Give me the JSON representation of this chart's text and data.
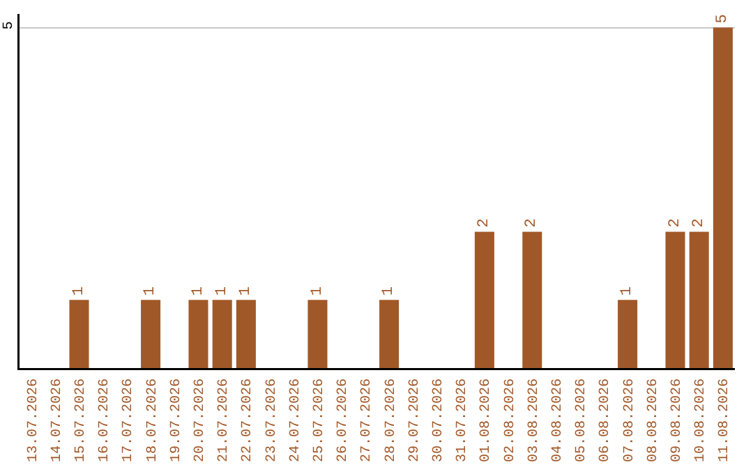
{
  "chart_data": {
    "type": "bar",
    "categories": [
      "13.07.2026",
      "14.07.2026",
      "15.07.2026",
      "16.07.2026",
      "17.07.2026",
      "18.07.2026",
      "19.07.2026",
      "20.07.2026",
      "21.07.2026",
      "22.07.2026",
      "23.07.2026",
      "24.07.2026",
      "25.07.2026",
      "26.07.2026",
      "27.07.2026",
      "28.07.2026",
      "29.07.2026",
      "30.07.2026",
      "31.07.2026",
      "01.08.2026",
      "02.08.2026",
      "03.08.2026",
      "04.08.2026",
      "05.08.2026",
      "06.08.2026",
      "07.08.2026",
      "08.08.2026",
      "09.08.2026",
      "10.08.2026",
      "11.08.2026"
    ],
    "values": [
      0,
      0,
      1,
      0,
      0,
      1,
      0,
      1,
      1,
      1,
      0,
      0,
      1,
      0,
      0,
      1,
      0,
      0,
      0,
      2,
      0,
      2,
      0,
      0,
      0,
      1,
      0,
      2,
      2,
      5
    ],
    "value_labels": [
      null,
      null,
      "1",
      null,
      null,
      "1",
      null,
      "1",
      "1",
      "1",
      null,
      null,
      "1",
      null,
      null,
      "1",
      null,
      null,
      null,
      "2",
      null,
      "2",
      null,
      null,
      null,
      "1",
      null,
      "2",
      "2",
      "5"
    ],
    "color": "#a15828",
    "ylim": [
      0,
      5.2
    ],
    "yticks": [
      5
    ],
    "grid": "y"
  }
}
